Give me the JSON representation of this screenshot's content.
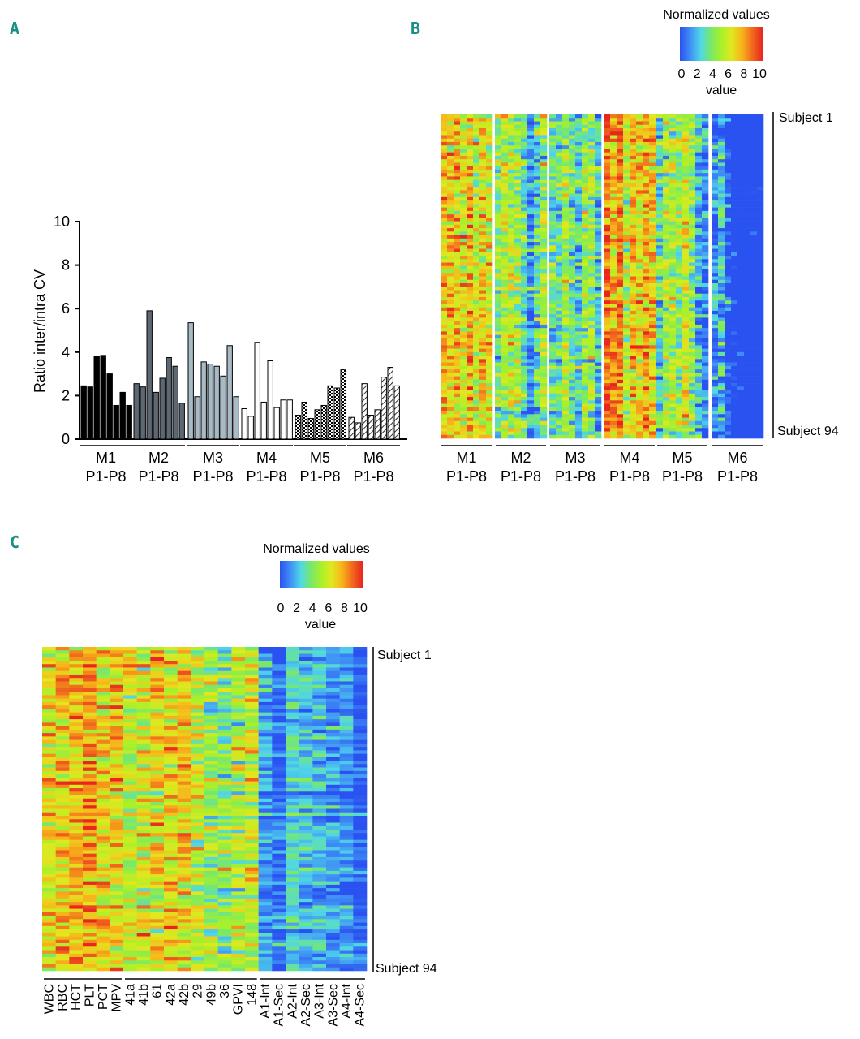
{
  "panels": {
    "a": "A",
    "b": "B",
    "c": "C"
  },
  "colors": {
    "scale": [
      "#2a52f0",
      "#3f8ff5",
      "#4fd6e8",
      "#78e86a",
      "#a8f02a",
      "#e0e81f",
      "#f8b31a",
      "#f06a1d",
      "#e8251f"
    ],
    "m1": "#000000",
    "m2": "#5d6872",
    "m3": "#a8bac5",
    "m4": "#ffffff",
    "m5": "#ffffff",
    "m6": "#ffffff"
  },
  "chart_data": [
    {
      "type": "bar",
      "panel": "A",
      "ylabel": "Ratio inter/intra CV",
      "ylim": [
        0,
        10
      ],
      "yticks": [
        "0",
        "2",
        "4",
        "6",
        "8",
        "10"
      ],
      "groups": [
        {
          "name": "M1",
          "sub": "P1-P8",
          "pattern": "solid",
          "values": [
            2.45,
            2.4,
            3.8,
            3.85,
            3.0,
            1.55,
            2.15,
            1.55
          ]
        },
        {
          "name": "M2",
          "sub": "P1-P8",
          "pattern": "solid",
          "values": [
            2.55,
            2.4,
            5.9,
            2.15,
            2.8,
            3.75,
            3.35,
            1.65
          ]
        },
        {
          "name": "M3",
          "sub": "P1-P8",
          "pattern": "solid",
          "values": [
            5.35,
            1.95,
            3.55,
            3.45,
            3.35,
            2.9,
            4.3,
            1.95
          ]
        },
        {
          "name": "M4",
          "sub": "P1-P8",
          "pattern": "open",
          "values": [
            1.4,
            1.05,
            4.45,
            1.7,
            3.6,
            1.45,
            1.8,
            1.8
          ]
        },
        {
          "name": "M5",
          "sub": "P1-P8",
          "pattern": "checkered",
          "values": [
            1.1,
            1.7,
            0.95,
            1.35,
            1.55,
            2.45,
            2.35,
            3.2
          ]
        },
        {
          "name": "M6",
          "sub": "P1-P8",
          "pattern": "hatched",
          "values": [
            1.0,
            0.75,
            2.55,
            1.1,
            1.35,
            2.85,
            3.3,
            2.45
          ]
        }
      ]
    },
    {
      "type": "heatmap",
      "panel": "B",
      "legend_title": "Normalized values",
      "legend_ticks": [
        "0",
        "2",
        "4",
        "6",
        "8",
        "10"
      ],
      "legend_label": "value",
      "range": [
        0,
        10
      ],
      "row_top": "Subject 1",
      "row_bottom": "Subject 94",
      "rows": 94,
      "column_groups": [
        {
          "name": "M1",
          "sub": "P1-P8",
          "columns": 8,
          "mean": 6.0
        },
        {
          "name": "M2",
          "sub": "P1-P8",
          "columns": 8,
          "mean": 4.6
        },
        {
          "name": "M3",
          "sub": "P1-P8",
          "columns": 8,
          "mean": 3.8
        },
        {
          "name": "M4",
          "sub": "P1-P8",
          "columns": 8,
          "mean": 7.0
        },
        {
          "name": "M5",
          "sub": "P1-P8",
          "columns": 8,
          "mean": 5.2
        },
        {
          "name": "M6",
          "sub": "P1-P8",
          "columns": 8,
          "mean": 2.0
        }
      ]
    },
    {
      "type": "heatmap",
      "panel": "C",
      "legend_title": "Normalized values",
      "legend_ticks": [
        "0",
        "2",
        "4",
        "6",
        "8",
        "10"
      ],
      "legend_label": "value",
      "range": [
        0,
        10
      ],
      "row_top": "Subject 1",
      "row_bottom": "Subject 94",
      "rows": 94,
      "columns": [
        "WBC",
        "RBC",
        "HCT",
        "PLT",
        "PCT",
        "MPV",
        "41a",
        "41b",
        "61",
        "42a",
        "42b",
        "29",
        "49b",
        "36",
        "GPVI",
        "148",
        "A1-Int",
        "A1-Sec",
        "A2-Int",
        "A2-Sec",
        "A3-Int",
        "A3-Sec",
        "A4-Int",
        "A4-Sec"
      ],
      "column_means": [
        6.3,
        6.9,
        7.4,
        8.0,
        6.6,
        7.0,
        5.8,
        6.2,
        6.8,
        6.6,
        6.6,
        5.4,
        4.6,
        4.2,
        5.0,
        5.8,
        1.6,
        0.6,
        2.6,
        2.2,
        2.0,
        1.4,
        1.4,
        0.4
      ],
      "column_groups": [
        [
          0,
          5
        ],
        [
          6,
          15
        ],
        [
          16,
          23
        ]
      ]
    }
  ]
}
